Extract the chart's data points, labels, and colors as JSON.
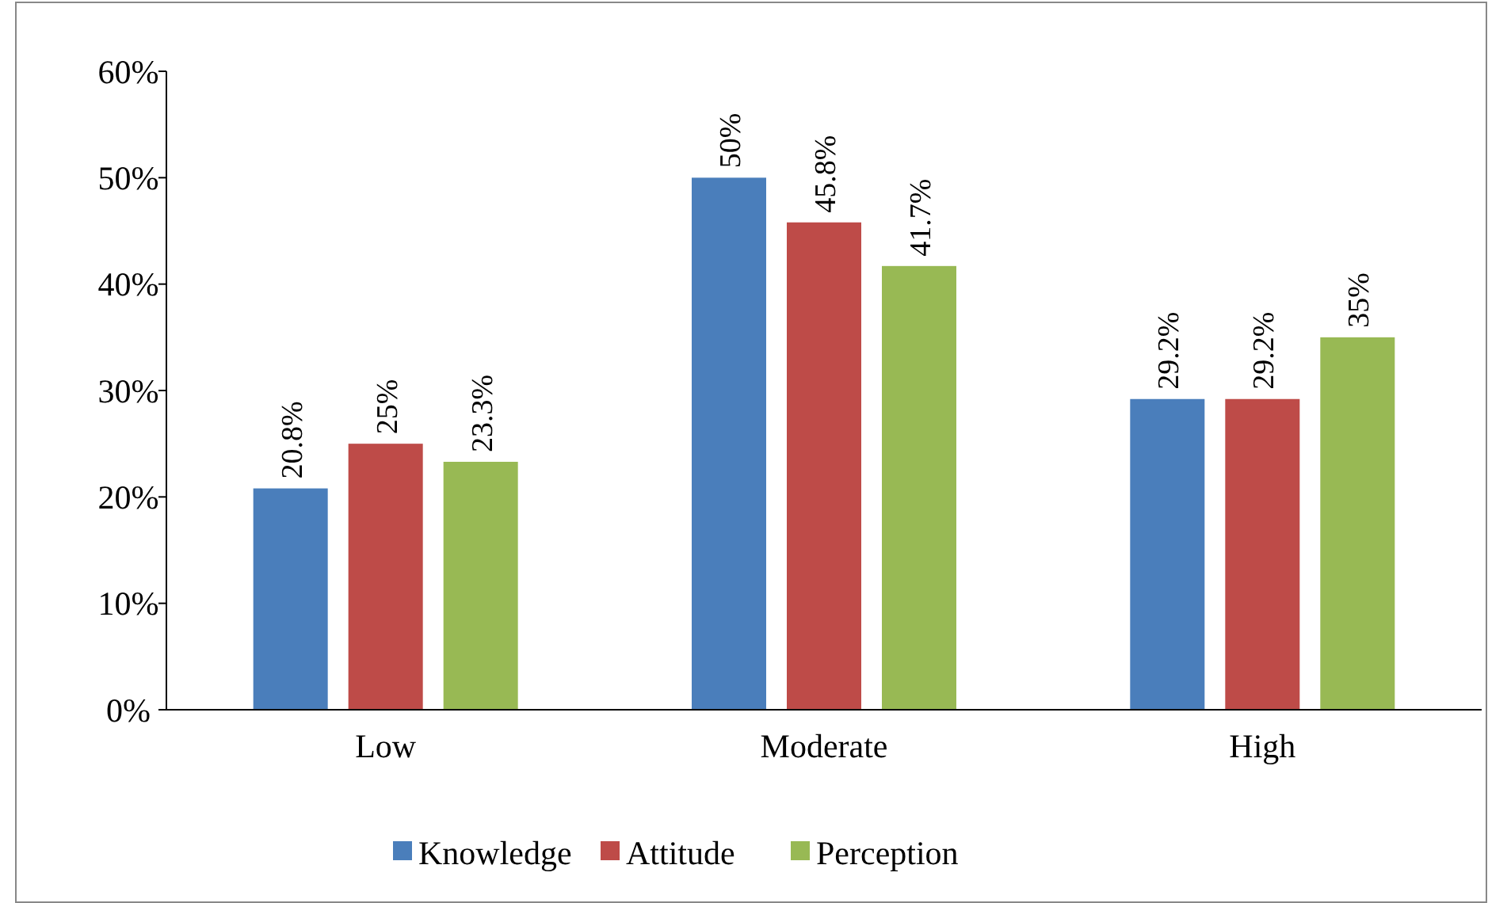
{
  "chart_data": {
    "type": "bar",
    "categories": [
      "Low",
      "Moderate",
      "High"
    ],
    "series": [
      {
        "name": "Knowledge",
        "color": "#4a7ebb",
        "values": [
          20.8,
          50,
          29.2
        ],
        "value_labels": [
          "20.8%",
          "50%",
          "29.2%"
        ]
      },
      {
        "name": "Attitude",
        "color": "#be4b48",
        "values": [
          25,
          45.8,
          29.2
        ],
        "value_labels": [
          "25%",
          "45.8%",
          "29.2%"
        ]
      },
      {
        "name": "Perception",
        "color": "#98b954",
        "values": [
          23.3,
          41.7,
          35
        ],
        "value_labels": [
          "23.3%",
          "41.7%",
          "35%"
        ]
      }
    ],
    "ylim": [
      0,
      60
    ],
    "yticks": [
      {
        "value": 0,
        "label": "0%"
      },
      {
        "value": 10,
        "label": "10%"
      },
      {
        "value": 20,
        "label": "20%"
      },
      {
        "value": 30,
        "label": "30%"
      },
      {
        "value": 40,
        "label": "40%"
      },
      {
        "value": 50,
        "label": "50%"
      },
      {
        "value": 60,
        "label": "60%"
      }
    ],
    "legend": "bottom"
  }
}
